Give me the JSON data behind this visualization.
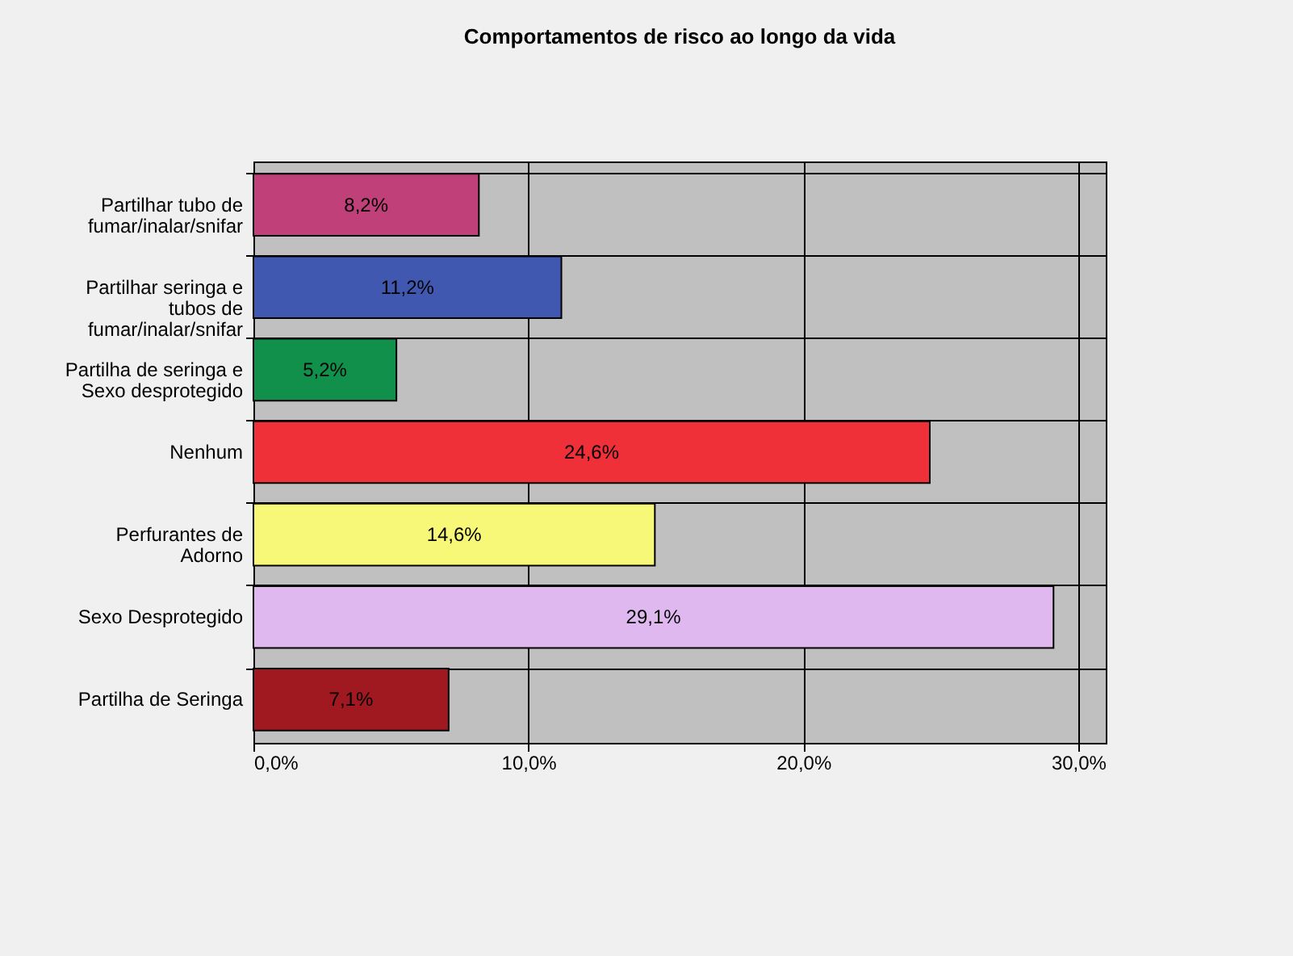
{
  "chart_data": {
    "type": "bar",
    "orientation": "horizontal",
    "title": "Comportamentos de risco ao longo da vida",
    "categories": [
      "Partilhar tubo de\nfumar/inalar/snifar",
      "Partilhar seringa e\ntubos de\nfumar/inalar/snifar",
      "Partilha de seringa e\nSexo desprotegido",
      "Nenhum",
      "Perfurantes de\nAdorno",
      "Sexo Desprotegido",
      "Partilha de Seringa"
    ],
    "values": [
      8.2,
      11.2,
      5.2,
      24.6,
      14.6,
      29.1,
      7.1
    ],
    "colors": [
      "#c0407a",
      "#4058b0",
      "#10904a",
      "#f03038",
      "#f8f878",
      "#e0b8f0",
      "#a01820"
    ],
    "value_labels": [
      "8,2%",
      "11,2%",
      "5,2%",
      "24,6%",
      "14,6%",
      "29,1%",
      "7,1%"
    ],
    "xlim": [
      0,
      31
    ],
    "xticks": [
      {
        "value": 0,
        "label": "0,0%"
      },
      {
        "value": 10,
        "label": "10,0%"
      },
      {
        "value": 20,
        "label": "20,0%"
      },
      {
        "value": 30,
        "label": "30,0%"
      }
    ],
    "grid": true,
    "legend": false
  }
}
